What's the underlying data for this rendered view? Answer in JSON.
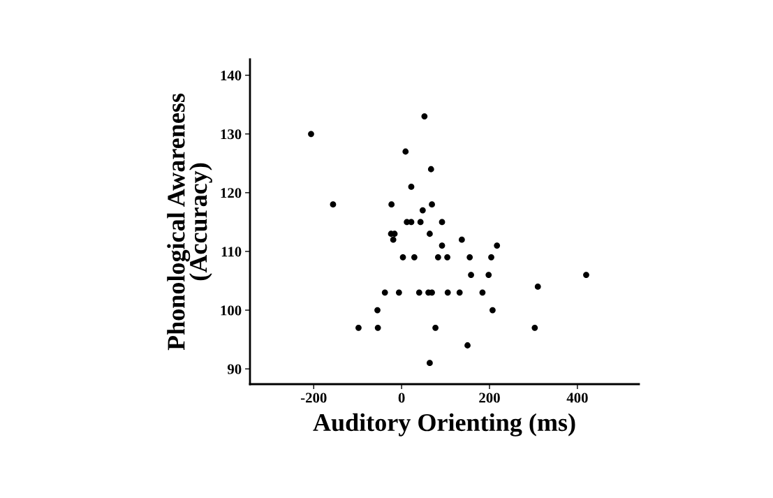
{
  "chart_data": {
    "type": "scatter",
    "xlabel": "Auditory Orienting (ms)",
    "ylabel": "Phonological Awareness\n(Accuracy)",
    "x": [
      -206,
      -156,
      -98,
      -55,
      -54,
      -38,
      -23,
      -24,
      -16,
      -19,
      -6,
      3,
      9,
      12,
      22,
      43,
      92,
      22,
      48,
      69,
      52,
      67,
      64,
      137,
      92,
      217,
      29,
      83,
      104,
      155,
      204,
      158,
      198,
      40,
      61,
      69,
      105,
      132,
      184,
      207,
      77,
      303,
      150,
      64,
      310,
      420
    ],
    "values": [
      130,
      118,
      97,
      100,
      97,
      103,
      118,
      113,
      113,
      112,
      103,
      109,
      127,
      115,
      115,
      115,
      115,
      121,
      117,
      118,
      133,
      124,
      113,
      112,
      111,
      111,
      109,
      109,
      109,
      109,
      109,
      106,
      106,
      103,
      103,
      103,
      103,
      103,
      103,
      100,
      97,
      97,
      94,
      91,
      104,
      106
    ],
    "color": "#000000",
    "marker": "circle",
    "xlim": [
      -345,
      540
    ],
    "ylim": [
      87.4,
      142.7
    ],
    "xticks": [
      -200,
      0,
      200,
      400
    ],
    "yticks": [
      90,
      100,
      110,
      120,
      130,
      140
    ],
    "grid": false,
    "legend": false
  }
}
